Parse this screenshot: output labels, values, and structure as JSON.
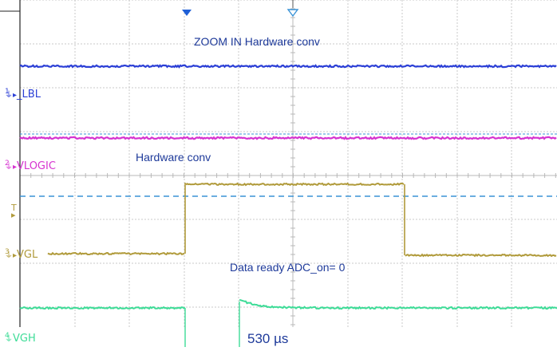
{
  "colors": {
    "ch1": "#2b3fd6",
    "ch2": "#d633d0",
    "ch3": "#b09a3a",
    "ch4": "#3ddc97",
    "trigger": "#3a93d6",
    "grid": "#c8c8c8",
    "annotation": "#1e3a9a"
  },
  "channels": [
    {
      "number": "1",
      "label": "_LBL"
    },
    {
      "number": "2",
      "label": "VLOGIC"
    },
    {
      "number": "3",
      "label": "VGL"
    },
    {
      "number": "4",
      "label": "VGH"
    }
  ],
  "trigger_marker": "T",
  "annotations": {
    "zoom_title": "ZOOM IN Hardware conv",
    "hw_conv": "Hardware conv",
    "data_ready": "Data ready ADC_on= 0",
    "pulse_width": "530 µs"
  },
  "icons": {
    "trigger_position": "triangle-down-filled-icon",
    "zoom_position": "triangle-down-outline-icon",
    "ground_marker": "ground-icon"
  }
}
